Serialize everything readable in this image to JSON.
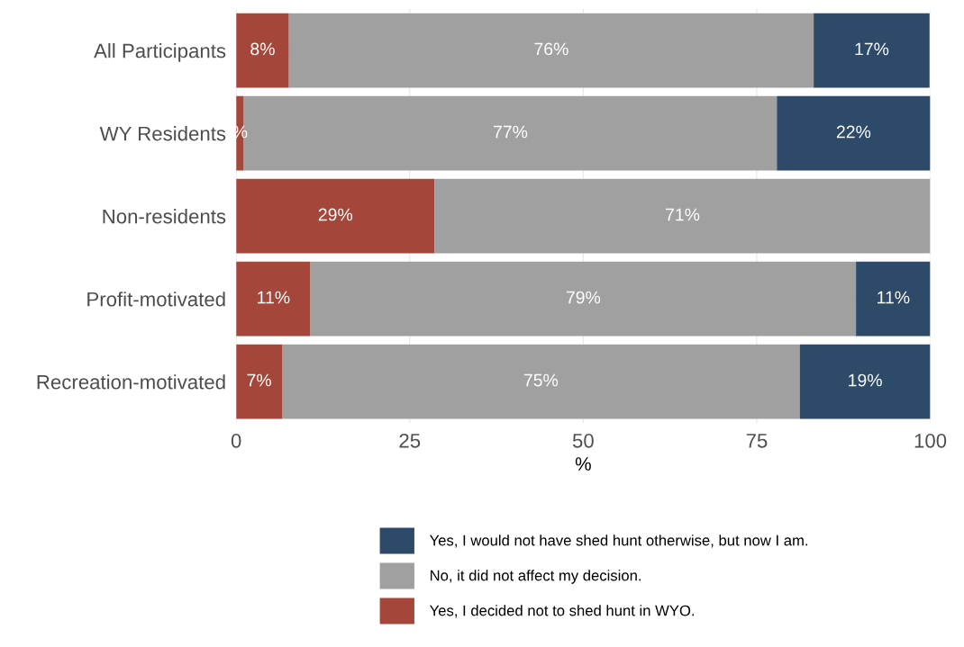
{
  "chart_data": {
    "type": "bar",
    "orientation": "horizontal",
    "stacked": true,
    "xlabel": "%",
    "categories": [
      "All Participants",
      "WY Residents",
      "Non-residents",
      "Profit-motivated",
      "Recreation-motivated"
    ],
    "series": [
      {
        "name": "Yes, I decided not to shed hunt in WYO.",
        "color": "#a4473a",
        "values": [
          7.6,
          1.1,
          28.6,
          10.7,
          6.6
        ],
        "value_labels": [
          "8%",
          "%",
          "29%",
          "11%",
          "7%"
        ]
      },
      {
        "name": "No, it did not affect my decision.",
        "color": "#a0a0a0",
        "values": [
          75.6,
          76.8,
          71.4,
          78.6,
          74.6
        ],
        "value_labels": [
          "76%",
          "77%",
          "71%",
          "79%",
          "75%"
        ]
      },
      {
        "name": "Yes, I would not have shed hunt otherwise, but now I am.",
        "color": "#2e4a69",
        "values": [
          16.7,
          22.1,
          0,
          10.7,
          18.8
        ],
        "value_labels": [
          "17%",
          "22%",
          null,
          "11%",
          "19%"
        ]
      }
    ],
    "xlim": [
      0,
      100
    ],
    "xticks": [
      0,
      25,
      50,
      75,
      100
    ],
    "grid": true,
    "legend": "bottom"
  }
}
